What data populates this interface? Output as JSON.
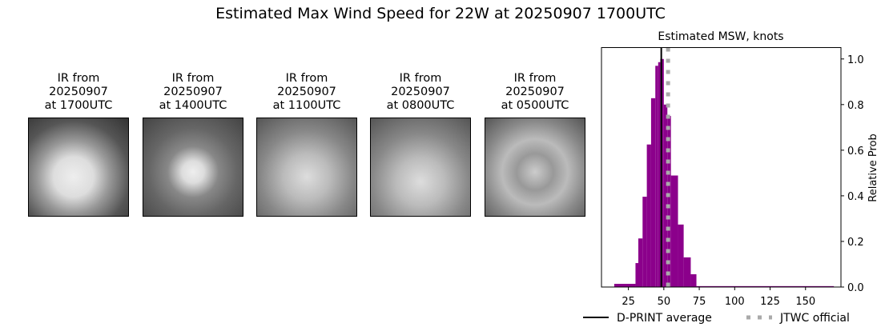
{
  "title": "Estimated Max Wind Speed for 22W at 20250907 1700UTC",
  "panels": [
    {
      "line1": "IR from",
      "line2": "20250907",
      "line3": "at 1700UTC"
    },
    {
      "line1": "IR from",
      "line2": "20250907",
      "line3": "at 1400UTC"
    },
    {
      "line1": "IR from",
      "line2": "20250907",
      "line3": "at 1100UTC"
    },
    {
      "line1": "IR from",
      "line2": "20250907",
      "line3": "at 0800UTC"
    },
    {
      "line1": "IR from",
      "line2": "20250907",
      "line3": "at 0500UTC"
    }
  ],
  "chart_data": {
    "type": "bar",
    "title": "Estimated MSW, knots",
    "xlabel": "",
    "ylabel": "Relative Prob",
    "xlim": [
      6,
      175
    ],
    "ylim": [
      0,
      1.05
    ],
    "xticks": [
      25,
      50,
      75,
      100,
      125,
      150
    ],
    "yticks": [
      0.0,
      0.2,
      0.4,
      0.6,
      0.8,
      1.0
    ],
    "bar_color": "#8b008b",
    "bins": [
      {
        "from": 15,
        "to": 30,
        "value": 0.014
      },
      {
        "from": 30,
        "to": 32,
        "value": 0.105
      },
      {
        "from": 32,
        "to": 35,
        "value": 0.213
      },
      {
        "from": 35,
        "to": 38,
        "value": 0.396
      },
      {
        "from": 38,
        "to": 41,
        "value": 0.625
      },
      {
        "from": 41,
        "to": 44,
        "value": 0.828
      },
      {
        "from": 44,
        "to": 46,
        "value": 0.97
      },
      {
        "from": 46,
        "to": 47.5,
        "value": 0.986
      },
      {
        "from": 47.5,
        "to": 50,
        "value": 1.0
      },
      {
        "from": 50,
        "to": 52.5,
        "value": 0.8
      },
      {
        "from": 52.5,
        "to": 55,
        "value": 0.75
      },
      {
        "from": 55,
        "to": 60,
        "value": 0.489
      },
      {
        "from": 60,
        "to": 64,
        "value": 0.274
      },
      {
        "from": 64,
        "to": 69,
        "value": 0.13
      },
      {
        "from": 69,
        "to": 73,
        "value": 0.056
      },
      {
        "from": 73,
        "to": 170,
        "value": 0.004
      }
    ],
    "lines": [
      {
        "name": "D-PRINT average",
        "x": 48.2,
        "color": "#000000",
        "style": "solid"
      },
      {
        "name": "JTWC official",
        "x": 53,
        "color": "#aaaaaa",
        "style": "dotted"
      }
    ],
    "legend": "bottom"
  }
}
